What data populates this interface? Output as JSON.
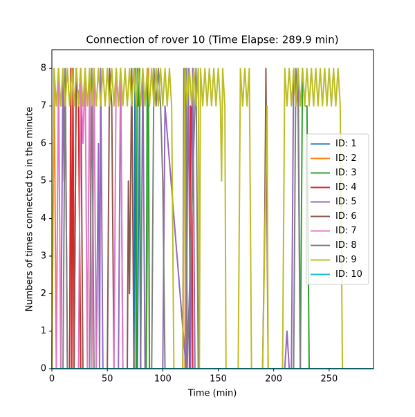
{
  "chart_data": {
    "type": "line",
    "title": "Connection of rover 10 (Time Elapse: 289.9 min)",
    "x_label": "Time (min)",
    "y_label": "Numbers of times connected to in the minute",
    "xlim": [
      0,
      290
    ],
    "xticks": [
      0,
      50,
      100,
      150,
      200,
      250
    ],
    "ylim": [
      0,
      8.5
    ],
    "yticks": [
      0,
      1,
      2,
      3,
      4,
      5,
      6,
      7,
      8
    ],
    "legend": "center right",
    "series": [
      {
        "name": "ID: 1",
        "color": "#1f77b4",
        "x": [
          0,
          74,
          75,
          76,
          77,
          79,
          80,
          81,
          290
        ],
        "values": [
          0,
          0,
          8,
          0,
          0,
          7,
          0,
          0,
          0
        ]
      },
      {
        "name": "ID: 2",
        "color": "#ff7f0e",
        "x": [
          0,
          2,
          4,
          6,
          85,
          86,
          87,
          88,
          120,
          121,
          122,
          290
        ],
        "values": [
          0,
          8,
          0,
          0,
          0,
          3,
          8,
          0,
          0,
          8,
          0,
          0
        ]
      },
      {
        "name": "ID: 3",
        "color": "#2ca02c",
        "x": [
          0,
          76,
          77,
          78,
          79,
          80,
          85,
          86,
          87,
          88,
          224,
          226,
          228,
          230,
          232,
          290
        ],
        "values": [
          0,
          0,
          8,
          7,
          8,
          0,
          0,
          8,
          7,
          0,
          0,
          8,
          7,
          7,
          0,
          0
        ]
      },
      {
        "name": "ID: 4",
        "color": "#d62728",
        "x": [
          0,
          16,
          17,
          18,
          19,
          20,
          22,
          24,
          26,
          124,
          125,
          126,
          127,
          128,
          290
        ],
        "values": [
          0,
          0,
          8,
          0,
          8,
          0,
          8,
          7,
          0,
          0,
          7,
          7,
          0,
          0,
          0
        ]
      },
      {
        "name": "ID: 5",
        "color": "#9467bd",
        "x": [
          0,
          8,
          10,
          11,
          12,
          14,
          40,
          42,
          43,
          44,
          46,
          60,
          62,
          64,
          80,
          82,
          84,
          100,
          102,
          121,
          123,
          125,
          127,
          129,
          210,
          212,
          214,
          216,
          218,
          220,
          222,
          224,
          290
        ],
        "values": [
          0,
          0,
          8,
          5,
          8,
          0,
          0,
          6,
          0,
          8,
          0,
          0,
          8,
          0,
          0,
          8,
          0,
          0,
          7,
          0,
          8,
          0,
          8,
          0,
          0,
          1,
          0,
          0,
          8,
          7,
          8,
          0,
          0
        ]
      },
      {
        "name": "ID: 6",
        "color": "#8c564b",
        "x": [
          0,
          20,
          22,
          24,
          26,
          28,
          30,
          50,
          52,
          54,
          56,
          68,
          69,
          70,
          72,
          74,
          190,
          192,
          193,
          195,
          290
        ],
        "values": [
          0,
          0,
          8,
          7,
          8,
          0,
          0,
          0,
          8,
          7,
          0,
          0,
          5,
          2,
          8,
          0,
          0,
          4,
          8,
          0,
          0
        ]
      },
      {
        "name": "ID: 7",
        "color": "#e377c2",
        "x": [
          0,
          4,
          6,
          8,
          24,
          26,
          28,
          30,
          32,
          34,
          36,
          38,
          40,
          42,
          56,
          58,
          60,
          62,
          64,
          290
        ],
        "values": [
          0,
          0,
          8,
          0,
          0,
          8,
          6,
          8,
          0,
          8,
          0,
          8,
          0,
          0,
          0,
          8,
          7,
          8,
          0,
          0
        ]
      },
      {
        "name": "ID: 8",
        "color": "#7f7f7f",
        "x": [
          0,
          10,
          12,
          14,
          34,
          36,
          38,
          90,
          92,
          94,
          96,
          98,
          100,
          102,
          118,
          119,
          120,
          121,
          122,
          130,
          132,
          218,
          220,
          222,
          224,
          290
        ],
        "values": [
          0,
          0,
          8,
          0,
          0,
          8,
          0,
          0,
          8,
          7,
          8,
          7,
          5,
          0,
          0,
          8,
          7,
          8,
          0,
          8,
          0,
          0,
          8,
          7,
          0,
          0
        ]
      },
      {
        "name": "ID: 9",
        "color": "#bcbd22",
        "x": [
          0,
          2,
          4,
          6,
          8,
          10,
          12,
          14,
          16,
          18,
          20,
          22,
          24,
          26,
          28,
          30,
          32,
          34,
          36,
          38,
          40,
          42,
          44,
          46,
          48,
          50,
          52,
          54,
          56,
          58,
          60,
          62,
          64,
          66,
          68,
          70,
          72,
          74,
          76,
          78,
          80,
          82,
          84,
          86,
          88,
          90,
          92,
          94,
          96,
          98,
          100,
          102,
          104,
          106,
          108,
          110,
          118,
          120,
          122,
          124,
          126,
          128,
          130,
          132,
          133,
          134,
          136,
          138,
          140,
          142,
          144,
          146,
          148,
          150,
          152,
          153,
          154,
          156,
          157,
          168,
          170,
          172,
          174,
          176,
          178,
          180,
          190,
          194,
          195,
          208,
          210,
          212,
          214,
          216,
          218,
          220,
          222,
          224,
          226,
          228,
          230,
          232,
          234,
          236,
          238,
          240,
          242,
          244,
          246,
          248,
          250,
          252,
          254,
          256,
          258,
          260,
          262,
          290
        ],
        "values": [
          0,
          8,
          7,
          8,
          7,
          8,
          7,
          8,
          7,
          8,
          7,
          8,
          7,
          8,
          7,
          8,
          7,
          8,
          7,
          8,
          7,
          8,
          7,
          8,
          7,
          8,
          7,
          8,
          7,
          8,
          7,
          8,
          7,
          8,
          7,
          8,
          7,
          8,
          7,
          8,
          7,
          8,
          7,
          8,
          7,
          8,
          7,
          8,
          7,
          8,
          7,
          8,
          7,
          8,
          7,
          0,
          0,
          8,
          7,
          8,
          7,
          8,
          7,
          8,
          0,
          8,
          7,
          8,
          7,
          8,
          7,
          8,
          7,
          8,
          7,
          5,
          8,
          7,
          0,
          0,
          8,
          7,
          8,
          7,
          8,
          0,
          0,
          7,
          0,
          0,
          8,
          7,
          8,
          7,
          8,
          7,
          8,
          7,
          8,
          7,
          8,
          7,
          8,
          7,
          8,
          7,
          8,
          7,
          8,
          7,
          8,
          7,
          8,
          7,
          8,
          7,
          0,
          0
        ]
      },
      {
        "name": "ID: 10",
        "color": "#17becf",
        "x": [
          0,
          290
        ],
        "values": [
          0,
          0
        ]
      }
    ]
  }
}
